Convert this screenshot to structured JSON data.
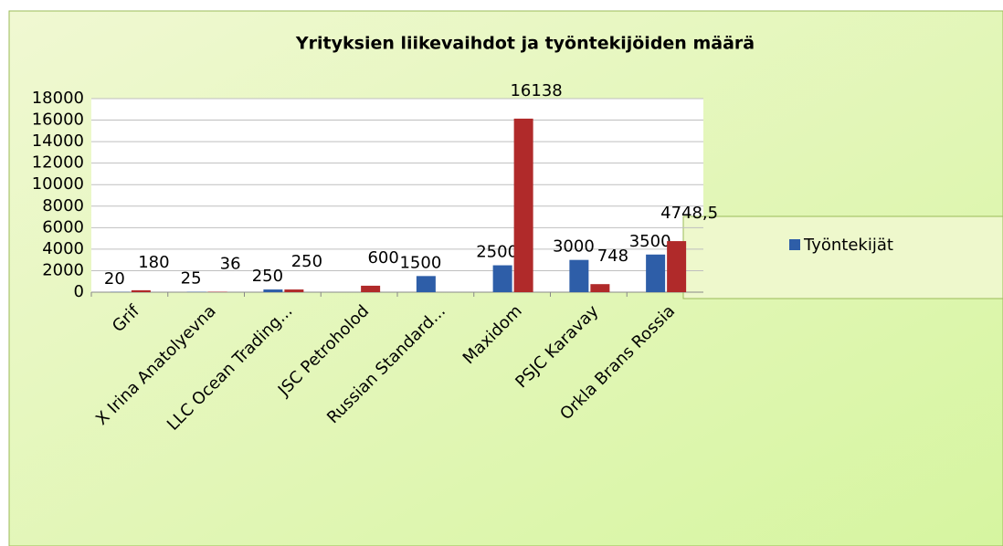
{
  "chart_data": {
    "type": "bar",
    "title": "Yrityksien liikevaihdot ja työntekijöiden määrä",
    "categories": [
      "Grif",
      "X Irina Anatolyevna",
      "LLC Ocean Trading...",
      "JSC Petroholod",
      "Russian Standard...",
      "Maxidom",
      "PSJC Karavay",
      "Orkla Brans Rossia"
    ],
    "series": [
      {
        "name": "Työntekijät",
        "color": "#2e5ea8",
        "values": [
          20,
          25,
          250,
          null,
          1500,
          2500,
          3000,
          3500
        ]
      },
      {
        "color": "#b02a2a",
        "values": [
          180,
          36,
          250,
          600,
          null,
          16138,
          748,
          4748.5
        ],
        "value_labels": [
          "180",
          "36",
          "250",
          "600",
          null,
          "16138",
          "748",
          "4748,5"
        ]
      }
    ],
    "ylim": [
      0,
      18000
    ],
    "yticks": [
      0,
      2000,
      4000,
      6000,
      8000,
      10000,
      12000,
      14000,
      16000,
      18000
    ],
    "grid": true,
    "legend": "right"
  }
}
